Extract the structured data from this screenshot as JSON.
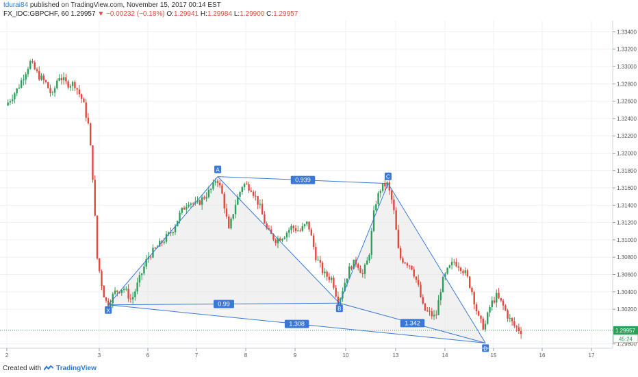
{
  "header": {
    "author": "tdurai84",
    "published_text": "published on TradingView.com, November 15, 2017 00:14 EST"
  },
  "symbol_info": {
    "symbol": "FX_IDC:GBPCHF, 60",
    "last": "1.29957",
    "change": "−0.00232 (−0.18%)",
    "open_label": "O:",
    "open": "1.29941",
    "high_label": "H:",
    "high": "1.29984",
    "low_label": "L:",
    "low": "1.29900",
    "close_label": "C:",
    "close": "1.29957"
  },
  "footer": {
    "created_with": "Created with",
    "brand": "TradingView"
  },
  "colors": {
    "up": "#2ca05a",
    "down": "#e0483e",
    "pattern": "#3a78d8",
    "pattern_fill": "#e6e6e6",
    "grid": "#eef1f5",
    "price_badge": "#2ca05a"
  },
  "chart_data": {
    "type": "candlestick",
    "symbol": "GBPCHF",
    "interval": "60",
    "x_tick_labels": [
      "2",
      "3",
      "6",
      "7",
      "8",
      "9",
      "10",
      "13",
      "14",
      "15",
      "16",
      "17"
    ],
    "y_tick_labels": [
      "1.33400",
      "1.33200",
      "1.33000",
      "1.32800",
      "1.32600",
      "1.32400",
      "1.32200",
      "1.32000",
      "1.31800",
      "1.31600",
      "1.31400",
      "1.31200",
      "1.31000",
      "1.30800",
      "1.30600",
      "1.30400",
      "1.30200",
      "1.29800"
    ],
    "y_range": [
      1.2975,
      1.3353
    ],
    "current_price": "1.29957",
    "countdown": "45:24",
    "grid": true,
    "price_path": [
      [
        0.0,
        1.3255
      ],
      [
        0.3,
        1.3275
      ],
      [
        0.6,
        1.3305
      ],
      [
        0.8,
        1.329
      ],
      [
        1.0,
        1.328
      ],
      [
        1.15,
        1.3265
      ],
      [
        1.3,
        1.329
      ],
      [
        1.5,
        1.328
      ],
      [
        1.7,
        1.328
      ],
      [
        1.9,
        1.326
      ],
      [
        2.05,
        1.323
      ],
      [
        2.15,
        1.317
      ],
      [
        2.25,
        1.308
      ],
      [
        2.4,
        1.304
      ],
      [
        2.5,
        1.3025
      ],
      [
        2.7,
        1.304
      ],
      [
        2.9,
        1.3045
      ],
      [
        3.1,
        1.303
      ],
      [
        3.3,
        1.3055
      ],
      [
        3.5,
        1.308
      ],
      [
        3.7,
        1.309
      ],
      [
        3.9,
        1.31
      ],
      [
        4.1,
        1.311
      ],
      [
        4.3,
        1.313
      ],
      [
        4.5,
        1.3145
      ],
      [
        4.7,
        1.314
      ],
      [
        4.9,
        1.315
      ],
      [
        5.1,
        1.316
      ],
      [
        5.2,
        1.3173
      ],
      [
        5.35,
        1.315
      ],
      [
        5.5,
        1.311
      ],
      [
        5.65,
        1.314
      ],
      [
        5.85,
        1.3165
      ],
      [
        6.05,
        1.316
      ],
      [
        6.25,
        1.314
      ],
      [
        6.45,
        1.311
      ],
      [
        6.65,
        1.31
      ],
      [
        6.85,
        1.3105
      ],
      [
        7.05,
        1.3115
      ],
      [
        7.25,
        1.311
      ],
      [
        7.45,
        1.312
      ],
      [
        7.65,
        1.308
      ],
      [
        7.85,
        1.306
      ],
      [
        8.05,
        1.3055
      ],
      [
        8.2,
        1.3027
      ],
      [
        8.35,
        1.305
      ],
      [
        8.5,
        1.307
      ],
      [
        8.65,
        1.3075
      ],
      [
        8.8,
        1.306
      ],
      [
        8.95,
        1.308
      ],
      [
        9.1,
        1.314
      ],
      [
        9.25,
        1.316
      ],
      [
        9.4,
        1.3165
      ],
      [
        9.55,
        1.314
      ],
      [
        9.7,
        1.308
      ],
      [
        9.85,
        1.3075
      ],
      [
        10.0,
        1.307
      ],
      [
        10.15,
        1.305
      ],
      [
        10.3,
        1.302
      ],
      [
        10.45,
        1.3015
      ],
      [
        10.6,
        1.301
      ],
      [
        10.75,
        1.305
      ],
      [
        10.9,
        1.3065
      ],
      [
        11.05,
        1.3075
      ],
      [
        11.2,
        1.307
      ],
      [
        11.35,
        1.306
      ],
      [
        11.5,
        1.304
      ],
      [
        11.65,
        1.301
      ],
      [
        11.8,
        1.2998
      ],
      [
        11.95,
        1.3025
      ],
      [
        12.1,
        1.3035
      ],
      [
        12.25,
        1.3025
      ],
      [
        12.4,
        1.301
      ],
      [
        12.55,
        1.3
      ],
      [
        12.7,
        1.2995
      ]
    ],
    "pattern": {
      "points": [
        {
          "label": "X",
          "x": 2.5,
          "y": 1.3025
        },
        {
          "label": "A",
          "x": 5.2,
          "y": 1.3173
        },
        {
          "label": "B",
          "x": 8.2,
          "y": 1.3027
        },
        {
          "label": "C",
          "x": 9.4,
          "y": 1.3165
        },
        {
          "label": "D",
          "x": 11.8,
          "y": 1.2981
        }
      ],
      "ratios": [
        {
          "label": "0.939",
          "from": "A",
          "to": "C"
        },
        {
          "label": "0.99",
          "from": "X",
          "to": "B"
        },
        {
          "label": "1.342",
          "from": "B",
          "to": "D"
        },
        {
          "label": "1.308",
          "from": "X",
          "to": "D"
        }
      ]
    }
  }
}
